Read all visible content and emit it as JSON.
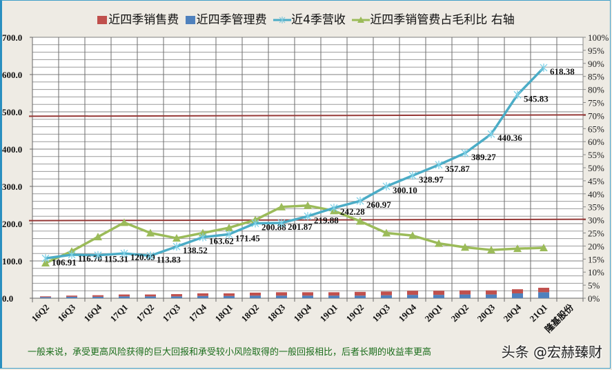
{
  "legend": {
    "items": [
      {
        "label": "近四季销售费",
        "color": "#c0504d",
        "kind": "bar"
      },
      {
        "label": "近四季管理费",
        "color": "#4f81bd",
        "kind": "bar"
      },
      {
        "label": "近4季营收",
        "color": "#4bacc6",
        "kind": "line-star"
      },
      {
        "label": "近四季销管费占毛利比 右轴",
        "color": "#9bbb59",
        "kind": "line-triangle"
      }
    ]
  },
  "left_axis": {
    "ticks": [
      "0.0",
      "100.0",
      "200.0",
      "300.0",
      "400.0",
      "500.0",
      "600.0",
      "700.0"
    ]
  },
  "right_axis": {
    "ticks": [
      "0%",
      "5%",
      "10%",
      "15%",
      "20%",
      "25%",
      "30%",
      "35%",
      "40%",
      "45%",
      "50%",
      "55%",
      "60%",
      "65%",
      "70%",
      "75%",
      "80%",
      "85%",
      "90%",
      "95%",
      "100%"
    ]
  },
  "x_extra_label": "隆基股份",
  "footer": {
    "text": "一般来说，承受更高风险获得的巨大回报和承受较小风险取得的一般回报相比，后者长期的收益率更高",
    "watermark": "头条 @宏赫臻财"
  },
  "chart_data": {
    "type": "bar+line",
    "title": "",
    "categories": [
      "16Q2",
      "16Q3",
      "16Q4",
      "17Q1",
      "17Q2",
      "17Q3",
      "17Q4",
      "18Q1",
      "18Q2",
      "18Q3",
      "18Q4",
      "19Q1",
      "19Q2",
      "19Q3",
      "19Q4",
      "20Q1",
      "20Q2",
      "20Q3",
      "20Q4",
      "21Q1"
    ],
    "series": [
      {
        "name": "近四季销售费",
        "type": "stacked-bar",
        "axis": "left",
        "color": "#c0504d",
        "values": [
          2,
          3,
          4,
          5,
          5,
          6,
          7,
          7,
          8,
          9,
          9,
          9,
          10,
          10,
          11,
          11,
          11,
          11,
          11,
          12
        ]
      },
      {
        "name": "近四季管理费",
        "type": "stacked-bar",
        "axis": "left",
        "color": "#4f81bd",
        "values": [
          3,
          4,
          4,
          5,
          5,
          5,
          6,
          6,
          7,
          7,
          7,
          7,
          7,
          8,
          9,
          9,
          10,
          10,
          13,
          16
        ]
      },
      {
        "name": "近4季营收",
        "type": "line",
        "axis": "left",
        "color": "#4bacc6",
        "values": [
          106.91,
          116.7,
          115.31,
          120.09,
          113.83,
          138.52,
          163.62,
          171.45,
          200.88,
          201.87,
          219.88,
          242.28,
          260.97,
          300.1,
          328.97,
          357.87,
          389.27,
          440.36,
          545.83,
          618.38
        ],
        "labels": [
          "106.91",
          "116.70",
          "115.31",
          "120.09",
          "113.83",
          "138.52",
          "163.62",
          "171.45",
          "200.88",
          "201.87",
          "219.88",
          "242.28",
          "260.97",
          "300.10",
          "328.97",
          "357.87",
          "389.27",
          "440.36",
          "545.83",
          "618.38"
        ]
      },
      {
        "name": "近四季销管费占毛利比 右轴",
        "type": "line",
        "axis": "right",
        "unit": "%",
        "color": "#9bbb59",
        "values": [
          13.5,
          18,
          23.5,
          29,
          25,
          23,
          25,
          27,
          30,
          35,
          35.5,
          33.5,
          29.5,
          25,
          24,
          21,
          19.5,
          18.5,
          19,
          19.3
        ]
      }
    ],
    "reference_lines": [
      {
        "axis": "right",
        "value": 70,
        "color": "#953735"
      },
      {
        "axis": "right",
        "value": 30,
        "color": "#953735"
      }
    ],
    "xlabel": "",
    "ylabel": "",
    "y2label": "",
    "ylim": [
      0,
      700
    ],
    "y2lim": [
      0,
      100
    ],
    "grid": true,
    "legend_position": "top"
  }
}
